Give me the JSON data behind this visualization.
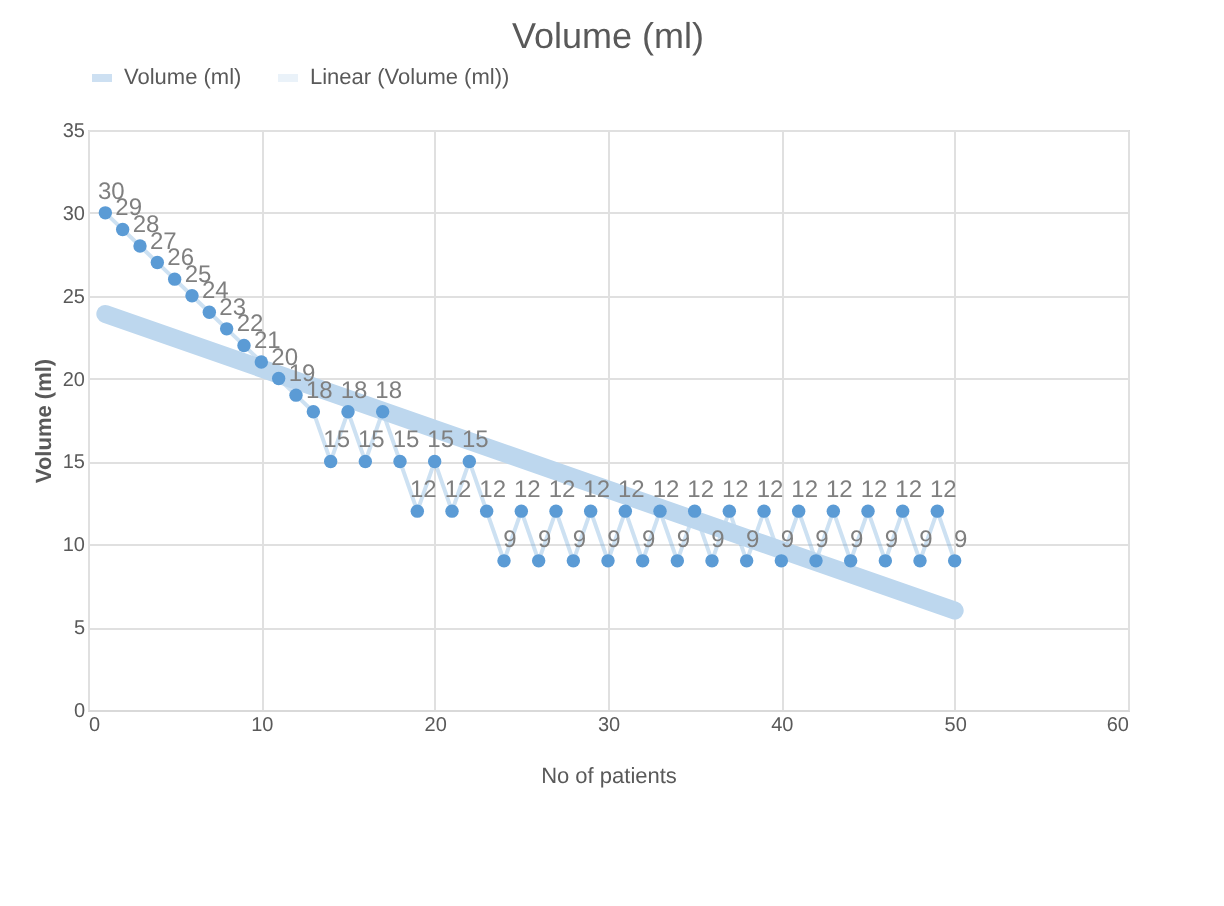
{
  "chart_data": {
    "type": "line",
    "title": "Volume (ml)",
    "xlabel": "No of patients",
    "ylabel": "Volume (ml)",
    "x": [
      1,
      2,
      3,
      4,
      5,
      6,
      7,
      8,
      9,
      10,
      11,
      12,
      13,
      14,
      15,
      16,
      17,
      18,
      19,
      20,
      21,
      22,
      23,
      24,
      25,
      26,
      27,
      28,
      29,
      30,
      31,
      32,
      33,
      34,
      35,
      36,
      37,
      38,
      39,
      40,
      41,
      42,
      43,
      44,
      45,
      46,
      47,
      48,
      49,
      50
    ],
    "series": [
      {
        "name": "Volume (ml)",
        "color": "#5b9bd5",
        "marker": "circle",
        "data_labels": true,
        "values": [
          30,
          29,
          28,
          27,
          26,
          25,
          24,
          23,
          22,
          21,
          20,
          19,
          18,
          15,
          18,
          15,
          18,
          15,
          12,
          15,
          12,
          15,
          12,
          9,
          12,
          9,
          12,
          9,
          12,
          9,
          12,
          9,
          12,
          9,
          12,
          9,
          12,
          9,
          12,
          9,
          12,
          9,
          12,
          9,
          12,
          9,
          12,
          9,
          12,
          9
        ]
      },
      {
        "name": "Linear (Volume (ml))",
        "color": "#bdd7ee",
        "type": "line",
        "marker": "none",
        "x": [
          1,
          50
        ],
        "values": [
          23.9,
          6.0
        ]
      }
    ],
    "xlim": [
      0,
      60
    ],
    "xticks": [
      0,
      10,
      20,
      30,
      40,
      50,
      60
    ],
    "ylim": [
      0,
      35
    ],
    "yticks": [
      0,
      5,
      10,
      15,
      20,
      25,
      30,
      35
    ],
    "grid": true,
    "legend": "top"
  }
}
